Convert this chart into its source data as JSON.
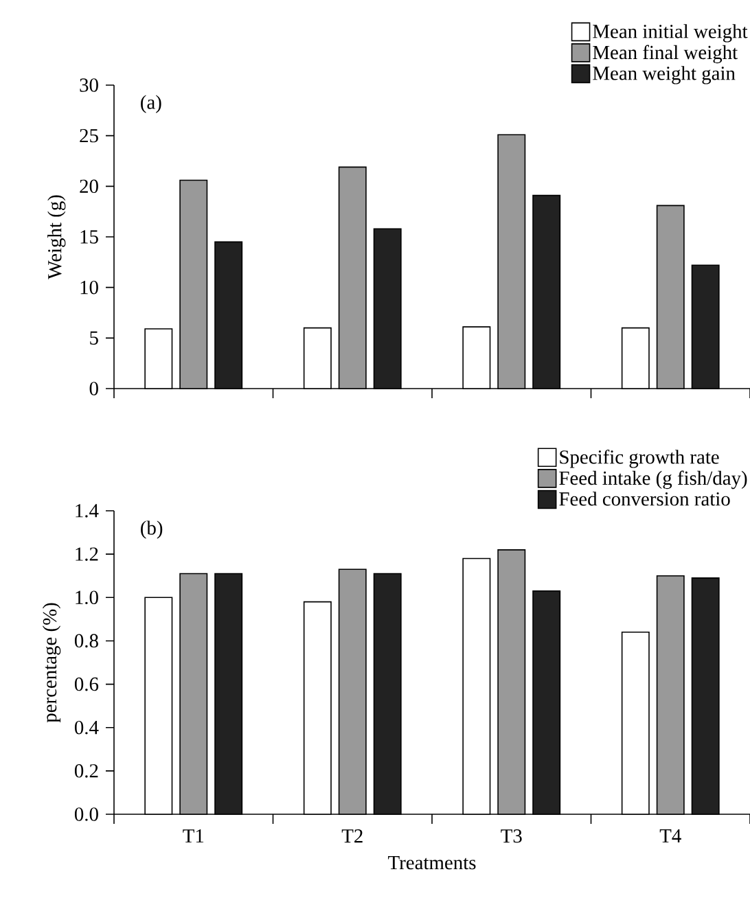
{
  "chart_data": [
    {
      "type": "bar",
      "ylabel": "Weight (g)",
      "categories": [
        null,
        null,
        null,
        null
      ],
      "tick_labels": "y",
      "ylim": [
        0,
        30
      ],
      "yticks": [
        0,
        5,
        10,
        15,
        20,
        25,
        30
      ],
      "legend": "top right",
      "annotations": [
        "(a)"
      ],
      "series": [
        {
          "name": "Mean initial weight",
          "color": "#ffffff",
          "values": [
            5.9,
            6.0,
            6.1,
            6.0
          ]
        },
        {
          "name": "Mean final weight",
          "color": "#999999",
          "values": [
            20.6,
            21.9,
            25.1,
            18.1
          ]
        },
        {
          "name": "Mean weight gain",
          "color": "#222222",
          "values": [
            14.5,
            15.8,
            19.1,
            12.2
          ]
        }
      ]
    },
    {
      "type": "bar",
      "xlabel": "Treatments",
      "ylabel": "percentage (%)",
      "categories": [
        "T1",
        "T2",
        "T3",
        "T4"
      ],
      "ylim": [
        0,
        1.4
      ],
      "yticks": [
        {
          "value": 0,
          "label": "0.0"
        },
        {
          "value": 0.2,
          "label": "0.2"
        },
        {
          "value": 0.4,
          "label": "0.4"
        },
        {
          "value": 0.6,
          "label": "0.6"
        },
        {
          "value": 0.8,
          "label": "0.8"
        },
        {
          "value": 1.0,
          "label": "1.0"
        },
        {
          "value": 1.2,
          "label": "1.2"
        },
        {
          "value": 1.4,
          "label": "1.4"
        }
      ],
      "legend": "top right",
      "annotations": [
        "(b)"
      ],
      "series": [
        {
          "name": "Specific growth rate",
          "color": "#ffffff",
          "values": [
            1.0,
            0.98,
            1.18,
            0.84
          ]
        },
        {
          "name": "Feed intake (g fish/day)",
          "color": "#999999",
          "values": [
            1.11,
            1.13,
            1.22,
            1.1
          ]
        },
        {
          "name": "Feed conversion ratio",
          "color": "#222222",
          "values": [
            1.11,
            1.11,
            1.03,
            1.09
          ]
        }
      ]
    }
  ]
}
